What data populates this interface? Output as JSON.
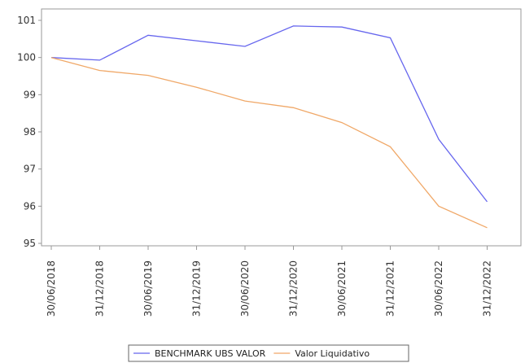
{
  "chart_data": {
    "type": "line",
    "title": "",
    "xlabel": "",
    "ylabel": "",
    "categories": [
      "30/06/2018",
      "31/12/2018",
      "30/06/2019",
      "31/12/2019",
      "30/06/2020",
      "31/12/2020",
      "30/06/2021",
      "31/12/2021",
      "30/06/2022",
      "31/12/2022"
    ],
    "ylim": [
      95,
      101
    ],
    "yticks": [
      95,
      96,
      97,
      98,
      99,
      100,
      101
    ],
    "grid": false,
    "legend_position": "bottom",
    "series": [
      {
        "name": "BENCHMARK UBS VALOR",
        "color": "#6666ee",
        "points": [
          {
            "x": "30/06/2018",
            "y": 100.0
          },
          {
            "x": "31/12/2018",
            "y": 99.93
          },
          {
            "x": "30/06/2019",
            "y": 100.6
          },
          {
            "x": "31/12/2019",
            "y": 100.45
          },
          {
            "x": "30/06/2020",
            "y": 100.3
          },
          {
            "x": "31/12/2020",
            "y": 100.85
          },
          {
            "x": "30/06/2021",
            "y": 100.82
          },
          {
            "x": "31/12/2021",
            "y": 100.53
          },
          {
            "x": "30/06/2022",
            "y": 97.8
          },
          {
            "x": "31/12/2022",
            "y": 96.12
          }
        ]
      },
      {
        "name": "Valor Liquidativo",
        "color": "#f0a868",
        "points": [
          {
            "x": "30/06/2018",
            "y": 100.0
          },
          {
            "x": "31/12/2018",
            "y": 99.65
          },
          {
            "x": "30/06/2019",
            "y": 99.52
          },
          {
            "x": "31/12/2019",
            "y": 99.2
          },
          {
            "x": "30/06/2020",
            "y": 98.83
          },
          {
            "x": "31/12/2020",
            "y": 98.65
          },
          {
            "x": "30/06/2021",
            "y": 98.25
          },
          {
            "x": "31/12/2021",
            "y": 97.6
          },
          {
            "x": "30/06/2022",
            "y": 96.0
          },
          {
            "x": "31/12/2022",
            "y": 95.42
          }
        ]
      }
    ]
  }
}
